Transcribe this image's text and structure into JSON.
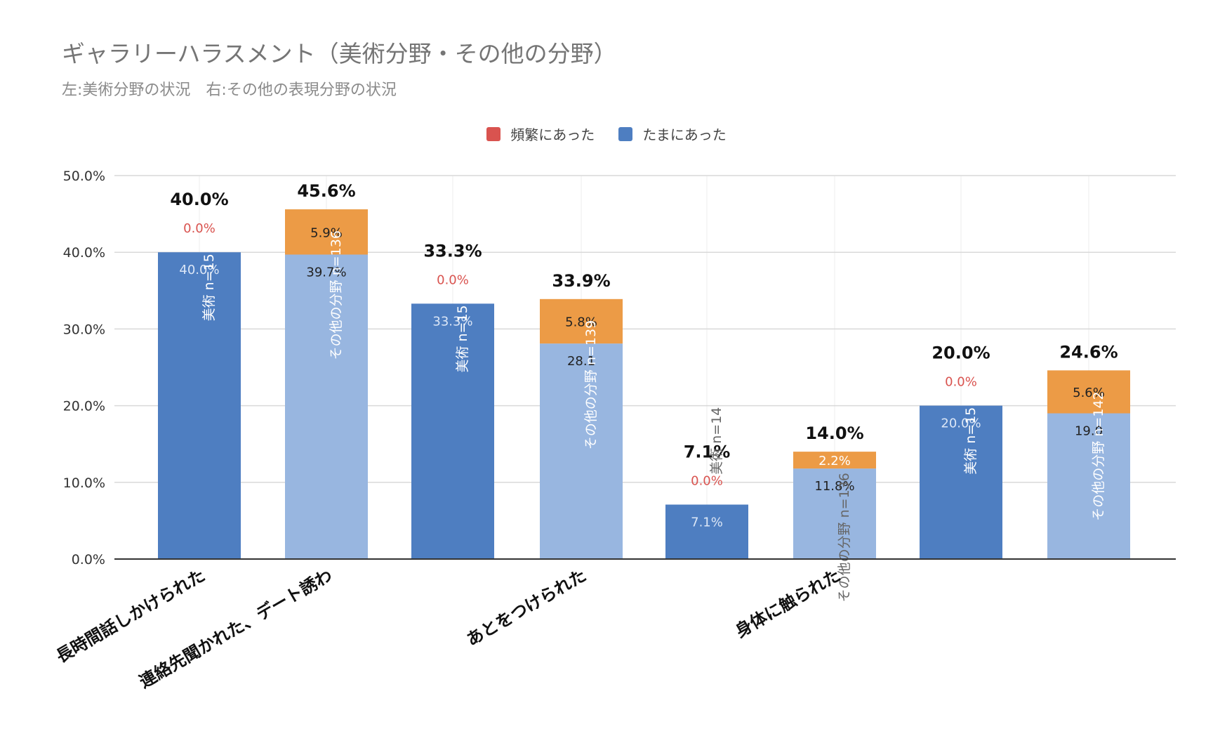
{
  "chart_data": {
    "type": "bar",
    "stacked": true,
    "title": "ギャラリーハラスメント（美術分野・その他の分野）",
    "subtitle": "左:美術分野の状況　右:その他の表現分野の状況",
    "legend": [
      {
        "label": "頻繁にあった",
        "color": "#d9534f"
      },
      {
        "label": "たまにあった",
        "color": "#4e7ec1"
      }
    ],
    "legend_position": "top",
    "ylim": [
      0,
      50
    ],
    "yticks": [
      "0.0%",
      "10.0%",
      "20.0%",
      "30.0%",
      "40.0%",
      "50.0%"
    ],
    "grid": true,
    "categories": [
      "長時間話しかけられた",
      "連絡先聞かれた、デート誘わ",
      "あとをつけられた",
      "身体に触られた"
    ],
    "bars": [
      {
        "group": 0,
        "field": "美術",
        "label": "美術 n=15",
        "tama": 40.0,
        "hinpan": 0.0,
        "total_label": "40.0%",
        "tama_label": "40.0%",
        "hinpan_label": "0.0%"
      },
      {
        "group": 0,
        "field": "その他の分野",
        "label": "その他の分野 n=136",
        "tama": 39.7,
        "hinpan": 5.9,
        "total_label": "45.6%",
        "tama_label": "39.7%",
        "hinpan_label": "5.9%"
      },
      {
        "group": 1,
        "field": "美術",
        "label": "美術 n=15",
        "tama": 33.3,
        "hinpan": 0.0,
        "total_label": "33.3%",
        "tama_label": "33.3%",
        "hinpan_label": "0.0%"
      },
      {
        "group": 1,
        "field": "その他の分野",
        "label": "その他の分野 n=139",
        "tama": 28.1,
        "hinpan": 5.8,
        "total_label": "33.9%",
        "tama_label": "28.1",
        "hinpan_label": "5.8%"
      },
      {
        "group": 2,
        "field": "美術",
        "label": "美術 n=14",
        "tama": 7.1,
        "hinpan": 0.0,
        "total_label": "7.1%",
        "tama_label": "7.1%",
        "hinpan_label": "0.0%"
      },
      {
        "group": 2,
        "field": "その他の分野",
        "label": "その他の分野 n=136",
        "tama": 11.8,
        "hinpan": 2.2,
        "total_label": "14.0%",
        "tama_label": "11.8%",
        "hinpan_label": "2.2%"
      },
      {
        "group": 3,
        "field": "美術",
        "label": "美術 n=15",
        "tama": 20.0,
        "hinpan": 0.0,
        "total_label": "20.0%",
        "tama_label": "20.0%",
        "hinpan_label": "0.0%"
      },
      {
        "group": 3,
        "field": "その他の分野",
        "label": "その他の分野 n=142",
        "tama": 19.0,
        "hinpan": 5.6,
        "total_label": "24.6%",
        "tama_label": "19.0",
        "hinpan_label": "5.6%"
      }
    ],
    "colors": {
      "art_tama": "#4e7ec1",
      "other_tama": "#98b6e0",
      "other_hinpan": "#ec9b46",
      "zero_label": "#d9534f",
      "total_label": "#111111",
      "grid": "#d9d9d9",
      "axis": "#333333"
    }
  }
}
